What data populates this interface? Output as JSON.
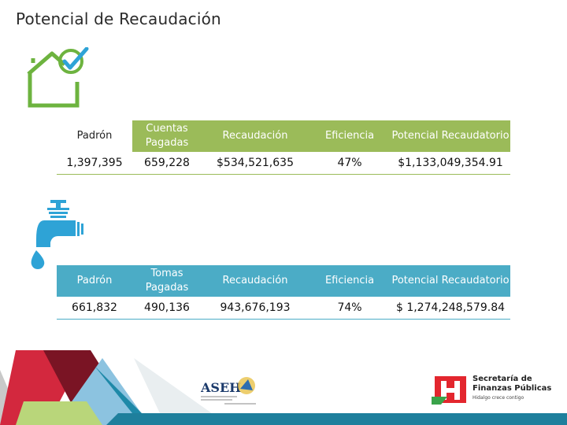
{
  "page": {
    "title": "Potencial de Recaudación"
  },
  "property_table": {
    "headers": [
      "Padrón",
      "Cuentas Pagadas",
      "Recaudación",
      "Eficiencia",
      "Potencial Recaudatorio"
    ],
    "row": [
      "1,397,395",
      "659,228",
      "$534,521,635",
      "47%",
      "$1,133,049,354.91"
    ]
  },
  "water_table": {
    "headers": [
      "Padrón",
      "Tomas Pagadas",
      "Recaudación",
      "Eficiencia",
      "Potencial Recaudatorio"
    ],
    "row": [
      "661,832",
      "490,136",
      "943,676,193",
      "74%",
      "$ 1,274,248,579.84"
    ]
  },
  "logos": {
    "asei": "ASEH",
    "secretaria_line1": "Secretaría de",
    "secretaria_line2": "Finanzas Públicas",
    "secretaria_tagline": "Hidalgo crece contigo"
  },
  "colors": {
    "green": "#9bbb59",
    "blue": "#4bacc6",
    "house_green": "#6db33f",
    "water_blue": "#2ea3d6"
  }
}
